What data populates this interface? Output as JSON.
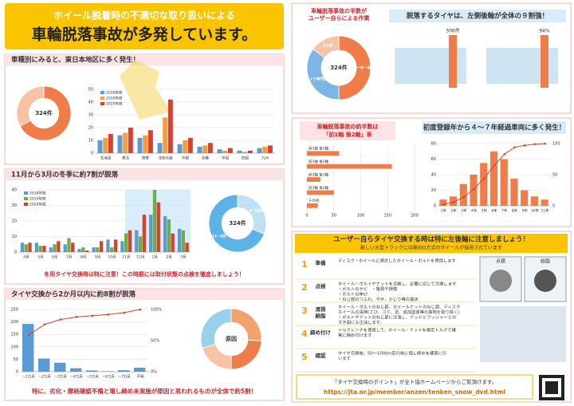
{
  "header": {
    "line1": "ホイール脱着時の不適切な取り扱いによる",
    "line2": "車輪脱落事故が多発しています。"
  },
  "region": {
    "title": "車種別にみると、東日本地区に多く発生！",
    "donut": {
      "center": "324件",
      "values": [
        67,
        33
      ],
      "colors": [
        "#ef7d4a",
        "#f8c3a5"
      ]
    },
    "chart": {
      "categories": [
        "北海道",
        "東北",
        "関東",
        "北陸信越",
        "中部",
        "近畿",
        "中国",
        "四国",
        "九州"
      ],
      "series": [
        {
          "name": "2018年度",
          "color": "#5b9bd5",
          "values": [
            10,
            14,
            12,
            8,
            7,
            5,
            3,
            2,
            4
          ]
        },
        {
          "name": "2019年度",
          "color": "#f0a040",
          "values": [
            12,
            16,
            14,
            28,
            10,
            6,
            2,
            1,
            5
          ]
        },
        {
          "name": "2020年度",
          "color": "#d9412e",
          "values": [
            15,
            20,
            18,
            42,
            12,
            8,
            4,
            2,
            6
          ]
        }
      ],
      "ylim": [
        0,
        50
      ],
      "yticks": [
        0,
        10,
        20,
        30,
        40,
        50
      ]
    }
  },
  "winter": {
    "title": "11月から3月の冬季に約7割が脱落",
    "chart": {
      "categories": [
        "4月",
        "5月",
        "6月",
        "7月",
        "8月",
        "9月",
        "10月",
        "11月",
        "12月",
        "1月",
        "2月",
        "3月"
      ],
      "series": [
        {
          "name": "2018年度",
          "color": "#5b9bd5",
          "values": [
            6,
            6,
            3,
            5,
            2,
            3,
            8,
            7,
            14,
            24,
            23,
            15
          ]
        },
        {
          "name": "2019年度",
          "color": "#70ad47",
          "values": [
            5,
            4,
            5,
            9,
            3,
            3,
            3,
            12,
            10,
            40,
            21,
            14
          ]
        },
        {
          "name": "2020年度",
          "color": "#d9412e",
          "values": [
            6,
            4,
            7,
            6,
            1,
            7,
            8,
            14,
            24,
            32,
            12,
            6
          ]
        }
      ],
      "ylim": [
        0,
        40
      ],
      "yticks": [
        0,
        10,
        20,
        30,
        40
      ]
    },
    "donut": {
      "center": "324件",
      "values": [
        31,
        69
      ],
      "colors": [
        "#bfe0f5",
        "#5bb3e6"
      ],
      "labels": [
        "4~10月",
        "11~3月"
      ]
    },
    "note": "冬用タイヤ交換時は特に注意！この時期には取付状態の点検を徹底しましょう！"
  },
  "exchange": {
    "title": "タイヤ交換から2か月以内に約8割が脱落",
    "chart": {
      "categories": [
        "~1カ月",
        "~2カ月",
        "~3カ月",
        "~4カ月",
        "~5カ月",
        "~6カ月",
        "~7カ月",
        "不明"
      ],
      "series": [
        {
          "name": "件数",
          "color": "#5b9bd5",
          "values": [
            192,
            53,
            36,
            14,
            5,
            2,
            6,
            16
          ]
        }
      ],
      "ylim": [
        0,
        250
      ],
      "yticks": [
        0,
        50,
        100,
        150,
        200,
        250
      ],
      "line": {
        "name": "累積割合",
        "color": "#d9412e",
        "values": [
          59,
          76,
          84,
          88,
          90,
          92,
          95,
          100
        ]
      },
      "y2lim": [
        0,
        100
      ],
      "y2ticks": [
        {
          "value": 0,
          "label": "0%"
        },
        {
          "value": 50,
          "label": "50%"
        },
        {
          "value": 100,
          "label": "100%"
        }
      ]
    },
    "donut": {
      "center": "原因",
      "values": [
        26,
        24,
        20,
        30
      ],
      "colors": [
        "#f2a36b",
        "#ef7d4a",
        "#f8c3a5",
        "#9ad0ec"
      ]
    },
    "note": "特に、劣化・摩耗確認不備と増し締め未実施が原因と思われるものが全体で約5割！"
  },
  "worker": {
    "title1": "車輪脱落事故の半数が",
    "title2": "ユーザー自らによる作業",
    "donut": {
      "center": "324件",
      "values": [
        50,
        35,
        15
      ],
      "colors": [
        "#ef7d4a",
        "#7bb6e6",
        "#f8c3a5"
      ],
      "labels": [
        "ユーザー自ら",
        "タイヤ専門店",
        "その他"
      ]
    }
  },
  "rear": {
    "title": "脱落するタイヤは、左側後軸が全体の９割強！",
    "count": "306件",
    "share": "94%"
  },
  "axle": {
    "title1": "車輪脱落事故の約半数は",
    "title2": "「前1軸 後2軸」車",
    "chart": {
      "categories": [
        "前1軸 後1軸",
        "前1軸 後2軸",
        "前2軸 後1軸",
        "前2軸 後2軸",
        "その他"
      ],
      "values": [
        60,
        158,
        25,
        50,
        20
      ],
      "color": "#ef7d4a",
      "xlim": [
        0,
        200
      ],
      "xticks": [
        0,
        50,
        100,
        150,
        200
      ]
    }
  },
  "age": {
    "title": "初度登録年から４～７年経過車両に多く発生！",
    "chart": {
      "categories": [
        "1年",
        "2年",
        "3年",
        "4年",
        "5年",
        "6年",
        "7年",
        "8年",
        "9年",
        "10年",
        "11年"
      ],
      "series": [
        {
          "name": "件数",
          "color": "#ef7d4a",
          "values": [
            8,
            12,
            28,
            40,
            55,
            70,
            60,
            35,
            20,
            12,
            8
          ]
        }
      ],
      "ylim": [
        0,
        80
      ],
      "yticks": [
        0,
        20,
        40,
        60,
        80
      ],
      "line": {
        "name": "累積",
        "color": "#d9412e",
        "values": [
          2,
          6,
          14,
          27,
          44,
          65,
          83,
          94,
          97,
          99,
          100
        ]
      },
      "y2lim": [
        0,
        100
      ],
      "y2ticks": [
        0,
        50,
        100
      ]
    }
  },
  "guide": {
    "title": "ユーザー自らタイヤ交換する時は特に左後輪に注意しましょう！",
    "subtitle": "新しい大型トラックには新ISO方式のホイールが採用されています",
    "steps": [
      {
        "num": "1",
        "label": [
          "準備"
        ],
        "lines": [
          "ディスク・ホイールに適合したホイール・ボルトを使用します"
        ]
      },
      {
        "num": "2",
        "label": [
          "点検"
        ],
        "lines": [
          "ホイール・ボルトやナットを点検し、必要に応じて交換します",
          "・ボルトのサビ　・亀裂や損傷",
          "・ボルトの伸び",
          "・ねじ部のつぶれ、やせ、かじり等の異状"
        ]
      },
      {
        "num": "3",
        "label": [
          "清掃",
          "給脂"
        ],
        "lines": [
          "ホイール・ボルトのねじ部、ホイールナットのねじ部、ディスク",
          "ホイールの清掃(さび、ゴミ、泥、追加塗装等の異物を取り除く)",
          "・ボルトやナットのねじ部に注油し、ナットとワッシャーとの",
          "すき間にも注油します。"
        ]
      },
      {
        "num": "4",
        "label": [
          "締め付け"
        ],
        "lines": [
          "トルクレンチを使用して、ホイール・ナットを規定トルクで確",
          "実に締め付けます"
        ]
      },
      {
        "num": "5",
        "label": [
          "確認"
        ],
        "lines": [
          "タイヤ交換後、50～100km走行後に増し締めを確実に行",
          "います"
        ]
      }
    ],
    "photo1": "点検",
    "photo2": "給脂",
    "footer": "「タイヤ交換時のポイント」が全ト協ホームページからご覧頂けます。",
    "url": "https://jta.or.jp/member/anzen/tenken_snow_dvd.html"
  }
}
